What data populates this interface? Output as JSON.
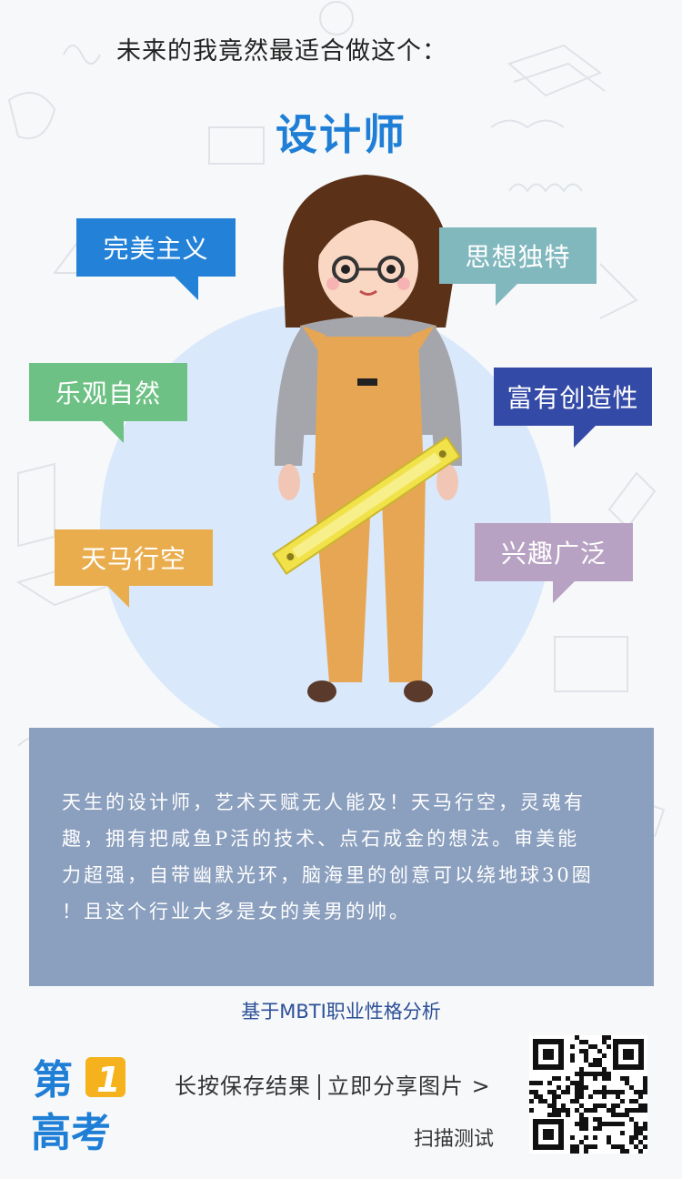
{
  "header": {
    "headline": "未来的我竟然最适合做这个：",
    "job_title": "设计师"
  },
  "traits": [
    {
      "label": "完美主义",
      "color": "#2382d8"
    },
    {
      "label": "思想独特",
      "color": "#81b8be"
    },
    {
      "label": "乐观自然",
      "color": "#6dc184"
    },
    {
      "label": "富有创造性",
      "color": "#344aa7"
    },
    {
      "label": "天马行空",
      "color": "#e9ad4e"
    },
    {
      "label": "兴趣广泛",
      "color": "#b8a2c3"
    }
  ],
  "description": {
    "lines": [
      "天生的设计师，艺术天赋无人能及！天马行空，灵魂有",
      "趣，拥有把咸鱼P活的技术、点石成金的想法。审美能",
      "力超强，自带幽默光环，脑海里的创意可以绕地球30圈",
      "！且这个行业大多是女的美男的帅。"
    ]
  },
  "basis": "基于MBTI职业性格分析",
  "logo": {
    "line1": "第",
    "number": "1",
    "line2": "高考"
  },
  "footer": {
    "save_label": "长按保存结果",
    "share_label": "立即分享图片 >",
    "scan_label": "扫描测试"
  },
  "colors": {
    "accent": "#1f7fd6",
    "panel": "#8b9fbe",
    "logo": "#1f7fd6",
    "logo_badge": "#f5b21c"
  }
}
